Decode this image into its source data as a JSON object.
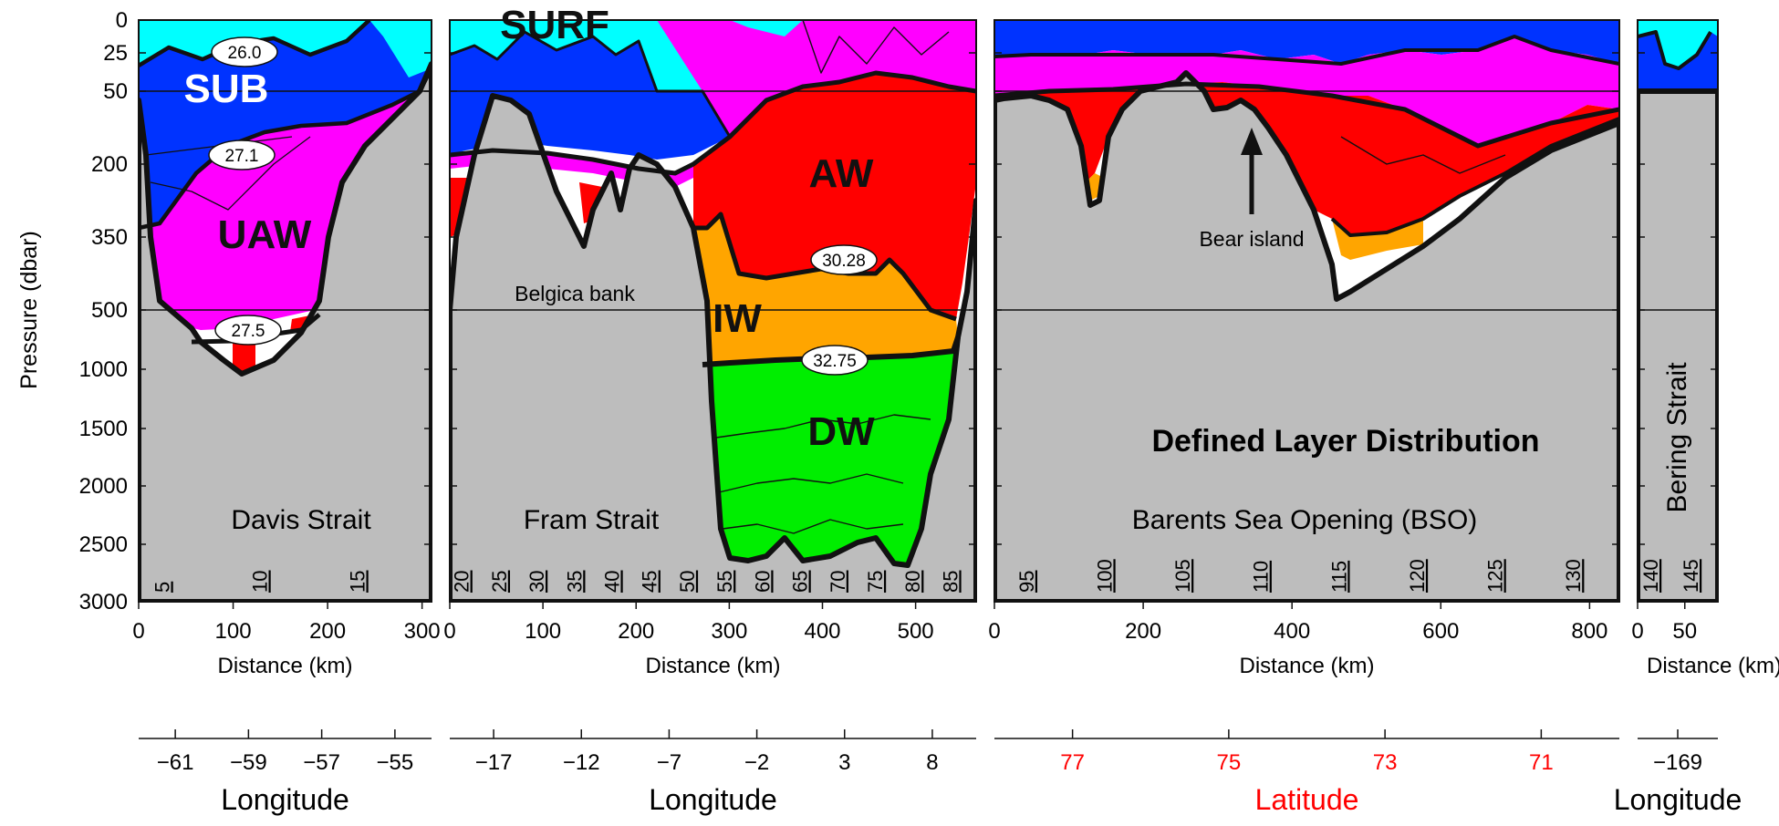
{
  "figure": {
    "title": "Defined Layer Distribution",
    "ylabel": "Pressure (dbar)",
    "pressure_ticks": [
      "0",
      "25",
      "50",
      "200",
      "350",
      "500",
      "1000",
      "1500",
      "2000",
      "2500",
      "3000"
    ],
    "colors": {
      "SURF": "#00ffff",
      "SUB": "#0033ff",
      "UAW": "#ff00ff",
      "AW": "#ff0000",
      "IW": "#ffa500",
      "DW": "#00ee00",
      "bottom": "#bdbdbd"
    },
    "annotations": {
      "belgica": "Belgica bank",
      "bear": "Bear island"
    }
  },
  "chart_data": [
    {
      "type": "area",
      "section": "Davis Strait",
      "xlabel": "Distance (km)",
      "x_ticks": [
        "0",
        "100",
        "200",
        "300"
      ],
      "xlim": [
        0,
        310
      ],
      "ylim": [
        0,
        3000
      ],
      "station_labels": [
        "5",
        "10",
        "15"
      ],
      "coord_label": "Longitude",
      "coord_ticks": [
        "−61",
        "−59",
        "−57",
        "−55"
      ],
      "layers": [
        "SURF",
        "SUB",
        "UAW",
        "AW"
      ],
      "layer_labels": [
        "SUB",
        "UAW"
      ],
      "isopycnal_labels": [
        "26.0",
        "27.1",
        "27.5"
      ]
    },
    {
      "type": "area",
      "section": "Fram Strait",
      "xlabel": "Distance (km)",
      "x_ticks": [
        "0",
        "100",
        "200",
        "300",
        "400",
        "500"
      ],
      "xlim": [
        0,
        565
      ],
      "ylim": [
        0,
        3000
      ],
      "station_labels": [
        "20",
        "25",
        "30",
        "35",
        "40",
        "45",
        "50",
        "55",
        "60",
        "65",
        "70",
        "75",
        "80",
        "85"
      ],
      "coord_label": "Longitude",
      "coord_ticks": [
        "−17",
        "−12",
        "−7",
        "−2",
        "3",
        "8"
      ],
      "layers": [
        "SURF",
        "SUB",
        "UAW",
        "AW",
        "IW",
        "DW"
      ],
      "layer_labels": [
        "SURF",
        "AW",
        "IW",
        "DW"
      ],
      "isopycnal_labels": [
        "30.28",
        "32.75"
      ]
    },
    {
      "type": "area",
      "section": "Barents Sea Opening (BSO)",
      "xlabel": "Distance (km)",
      "x_ticks": [
        "0",
        "200",
        "400",
        "600",
        "800"
      ],
      "xlim": [
        0,
        840
      ],
      "ylim": [
        0,
        3000
      ],
      "station_labels": [
        "95",
        "100",
        "105",
        "110",
        "115",
        "120",
        "125",
        "130"
      ],
      "coord_label": "Latitude",
      "coord_color": "#ff0000",
      "coord_ticks": [
        "77",
        "75",
        "73",
        "71"
      ],
      "layers": [
        "SUB",
        "UAW",
        "AW",
        "IW"
      ]
    },
    {
      "type": "area",
      "section": "Bering Strait",
      "xlabel": "Distance (km)",
      "x_ticks": [
        "0",
        "50"
      ],
      "xlim": [
        0,
        85
      ],
      "ylim": [
        0,
        3000
      ],
      "station_labels": [
        "140",
        "145"
      ],
      "coord_label": "Longitude",
      "coord_ticks": [
        "−169"
      ],
      "layers": [
        "SURF",
        "SUB"
      ]
    }
  ]
}
